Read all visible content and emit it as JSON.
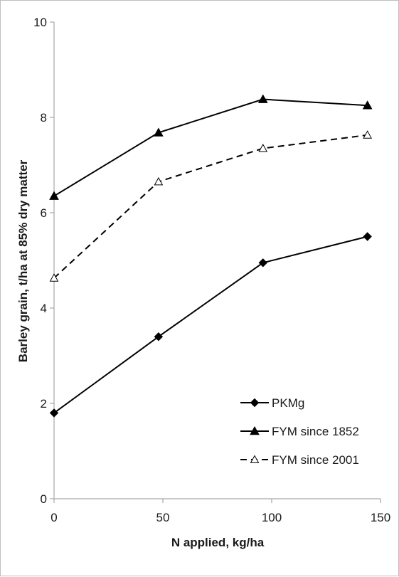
{
  "chart_data": {
    "type": "line",
    "xlabel": "N applied, kg/ha",
    "ylabel": "Barley grain, t/ha at 85% dry matter",
    "xlim": [
      0,
      150
    ],
    "ylim": [
      0,
      10
    ],
    "x_ticks": [
      "0",
      "50",
      "100",
      "150"
    ],
    "y_ticks": [
      "0",
      "2",
      "4",
      "6",
      "8",
      "10"
    ],
    "grid": false,
    "legend_position": "bottom-right",
    "x": [
      0,
      48,
      96,
      144
    ],
    "series": [
      {
        "name": "PKMg",
        "values": [
          1.8,
          3.4,
          4.95,
          5.5
        ],
        "marker": "diamond-filled",
        "line": "solid",
        "color": "#000000"
      },
      {
        "name": "FYM since 1852",
        "values": [
          6.35,
          7.68,
          8.38,
          8.25
        ],
        "marker": "triangle-filled",
        "line": "solid",
        "color": "#000000"
      },
      {
        "name": "FYM since 2001",
        "values": [
          4.63,
          6.65,
          7.35,
          7.63
        ],
        "marker": "triangle-open",
        "line": "dashed",
        "color": "#000000"
      }
    ]
  }
}
